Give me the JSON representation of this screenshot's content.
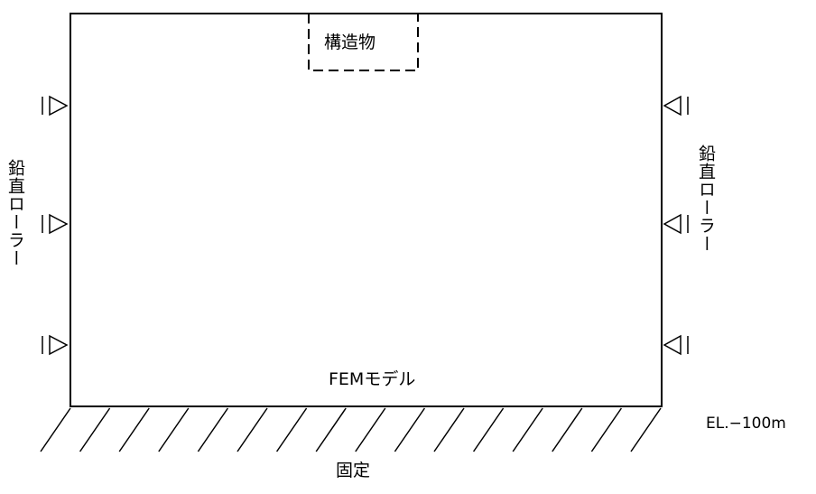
{
  "labels": {
    "structure": "構造物",
    "model": "FEMモデル",
    "elevation": "EL.−100m",
    "fixed": "固定",
    "roller_left": "鉛直ローラー",
    "roller_right": "鉛直ローラー"
  },
  "colors": {
    "line": "#000000",
    "background": "#ffffff"
  }
}
